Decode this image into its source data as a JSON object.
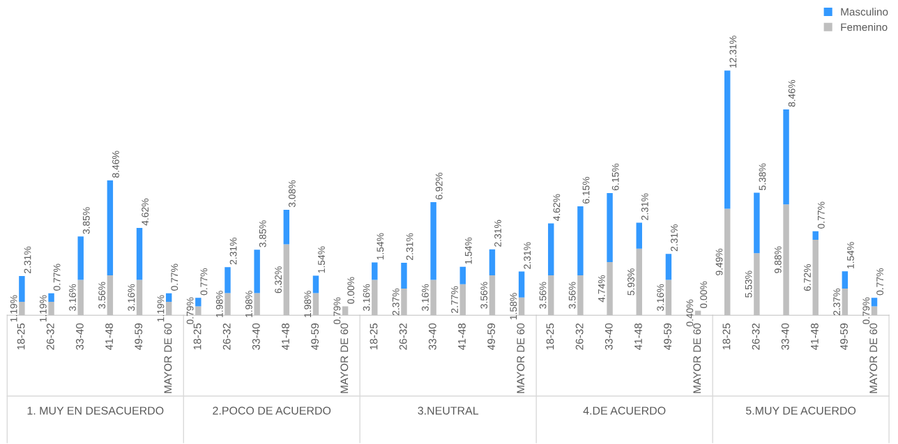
{
  "chart_data": {
    "type": "bar",
    "stacked": true,
    "legend": "top right",
    "categories": [
      "18-25",
      "26-32",
      "33-40",
      "41-48",
      "49-59",
      "MAYOR DE 60",
      "18-25",
      "26-32",
      "33-40",
      "41-48",
      "49-59",
      "MAYOR DE 60",
      "18-25",
      "26-32",
      "33-40",
      "41-48",
      "49-59",
      "MAYOR DE 60",
      "18-25",
      "26-32",
      "33-40",
      "41-48",
      "49-59",
      "MAYOR DE 60",
      "18-25",
      "26-32",
      "33-40",
      "41-48",
      "49-59",
      "MAYOR DE 60"
    ],
    "annotations": [
      "1. MUY EN DESACUERDO",
      "2.POCO DE ACUERDO",
      "3.NEUTRAL",
      "4.DE ACUERDO",
      "5.MUY DE ACUERDO"
    ],
    "series": [
      {
        "name": "Femenino",
        "color": "#bfbfbf",
        "values": [
          1.19,
          1.19,
          3.16,
          3.56,
          3.16,
          1.19,
          0.79,
          1.98,
          1.98,
          6.32,
          1.98,
          0.79,
          3.16,
          2.37,
          3.16,
          2.77,
          3.56,
          1.58,
          3.56,
          3.56,
          4.74,
          5.93,
          3.16,
          0.4,
          9.49,
          5.53,
          9.88,
          6.72,
          2.37,
          0.79
        ],
        "value_labels": [
          "1.19%",
          "1.19%",
          "3.16%",
          "3.56%",
          "3.16%",
          "1.19%",
          "0.79%",
          "1.98%",
          "1.98%",
          "6.32%",
          "1.98%",
          "0.79%",
          "3.16%",
          "2.37%",
          "3.16%",
          "2.77%",
          "3.56%",
          "1.58%",
          "3.56%",
          "3.56%",
          "4.74%",
          "5.93%",
          "3.16%",
          "0.40%",
          "9.49%",
          "5.53%",
          "9.88%",
          "6.72%",
          "2.37%",
          "0.79%"
        ]
      },
      {
        "name": "Masculino",
        "color": "#3399ff",
        "values": [
          2.31,
          0.77,
          3.85,
          8.46,
          4.62,
          0.77,
          0.77,
          2.31,
          3.85,
          3.08,
          1.54,
          0.0,
          1.54,
          2.31,
          6.92,
          1.54,
          2.31,
          2.31,
          4.62,
          6.15,
          6.15,
          2.31,
          2.31,
          0.0,
          12.31,
          5.38,
          8.46,
          0.77,
          1.54,
          0.77
        ],
        "value_labels": [
          "2.31%",
          "0.77%",
          "3.85%",
          "8.46%",
          "4.62%",
          "0.77%",
          "0.77%",
          "2.31%",
          "3.85%",
          "3.08%",
          "1.54%",
          "0.00%",
          "1.54%",
          "2.31%",
          "6.92%",
          "1.54%",
          "2.31%",
          "2.31%",
          "4.62%",
          "6.15%",
          "6.15%",
          "2.31%",
          "2.31%",
          "0.00%",
          "12.31%",
          "5.38%",
          "8.46%",
          "0.77%",
          "1.54%",
          "0.77%"
        ]
      }
    ]
  }
}
